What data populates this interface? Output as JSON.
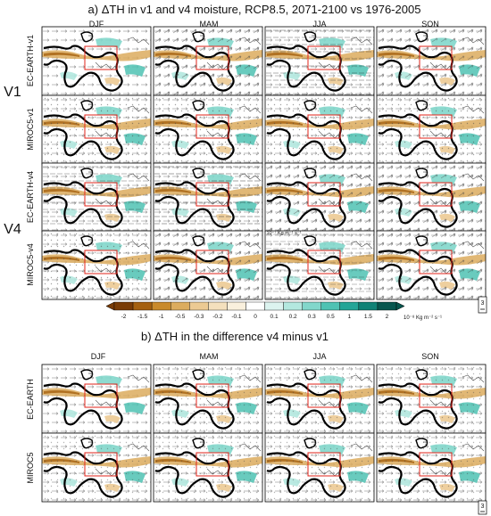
{
  "title_a": "a) ΔTH in v1 and v4 moisture, RCP8.5, 2071-2100 vs 1976-2005",
  "title_b": "b) ΔTH in the difference v4 minus v1",
  "seasons": [
    "DJF",
    "MAM",
    "JJA",
    "SON"
  ],
  "groups_a": [
    {
      "label": "V1",
      "rows": [
        "EC-EARTH-v1",
        "MIROC5-v1"
      ]
    },
    {
      "label": "V4",
      "rows": [
        "EC-EARTH-v4",
        "MIROC5-v4"
      ]
    }
  ],
  "rows_b": [
    "EC-EARTH",
    "MIROC5"
  ],
  "reference_vector_label": "10⁻⁷ Kg m⁻¹ s⁻¹",
  "reference_vector_value": "3",
  "colorbar": {
    "tick_labels": [
      "-2",
      "-1.5",
      "-1",
      "-0.5",
      "-0.3",
      "-0.2",
      "-0.1",
      "0",
      "0.1",
      "0.2",
      "0.3",
      "0.5",
      "1",
      "1.5",
      "2"
    ],
    "units": "10⁻⁸ Kg m⁻² s⁻¹",
    "colors": [
      "#7a3c05",
      "#a5600f",
      "#c98a2b",
      "#dcac5e",
      "#ecca93",
      "#f4e0bd",
      "#faf0dd",
      "#ffffff",
      "#dcf3ef",
      "#b3e8df",
      "#82d7cb",
      "#4fc2b3",
      "#23a597",
      "#0f8276",
      "#06564e"
    ]
  }
}
